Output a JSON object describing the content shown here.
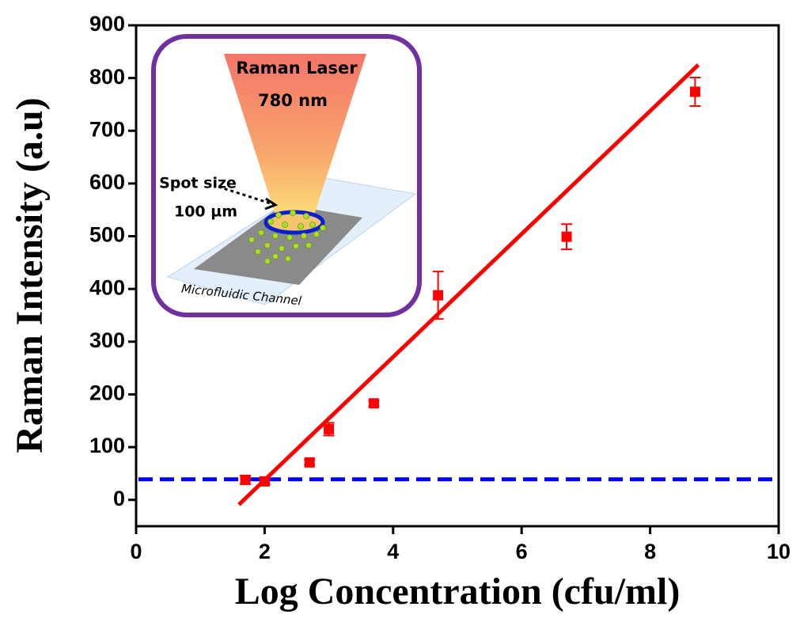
{
  "chart_data": {
    "type": "scatter",
    "x_label": "Log Concentration (cfu/ml)",
    "y_label": "Raman Intensity (a.u)",
    "xlim": [
      0,
      10
    ],
    "xticks": [
      0,
      2,
      4,
      6,
      8,
      10
    ],
    "ylim": [
      -50,
      900
    ],
    "yticks": [
      0,
      100,
      200,
      300,
      400,
      500,
      600,
      700,
      800,
      900
    ],
    "series": [
      {
        "mode": "markers",
        "color": "#ff0000",
        "x": [
          1.7,
          2.0,
          2.7,
          3.0,
          3.7,
          4.7,
          6.7,
          8.7
        ],
        "values": [
          38,
          35,
          71,
          134,
          183,
          388,
          499,
          774
        ],
        "errors": [
          8,
          5,
          5,
          12,
          5,
          45,
          24,
          27
        ]
      },
      {
        "mode": "line",
        "color": "#ff0000",
        "x": [
          1.6,
          8.75
        ],
        "values": [
          -9,
          825
        ]
      }
    ],
    "reference_line": {
      "value": 39,
      "color": "#0000ff",
      "style": "dashed"
    },
    "inset": {
      "laser": "Raman Laser",
      "wavelength": "780 nm",
      "spot_label": "Spot size",
      "spot_size": "100 µm",
      "channel": "Microfluidic Channel"
    }
  }
}
